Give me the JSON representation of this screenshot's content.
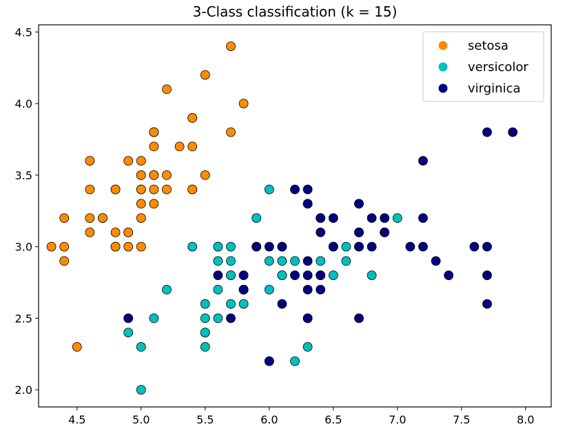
{
  "chart_data": {
    "type": "scatter",
    "title": "3-Class classification (k = 15)",
    "xlabel": "",
    "ylabel": "",
    "xlim": [
      4.2,
      8.2
    ],
    "ylim": [
      1.88,
      4.55
    ],
    "xticks": [
      4.5,
      5.0,
      5.5,
      6.0,
      6.5,
      7.0,
      7.5,
      8.0
    ],
    "xtick_labels": [
      "4.5",
      "5.0",
      "5.5",
      "6.0",
      "6.5",
      "7.0",
      "7.5",
      "8.0"
    ],
    "yticks": [
      2.0,
      2.5,
      3.0,
      3.5,
      4.0,
      4.5
    ],
    "ytick_labels": [
      "2.0",
      "2.5",
      "3.0",
      "3.5",
      "4.0",
      "4.5"
    ],
    "grid": false,
    "legend_position": "top-right",
    "series": [
      {
        "name": "setosa",
        "color": "#ff8c00",
        "points": [
          [
            5.1,
            3.5
          ],
          [
            4.9,
            3.0
          ],
          [
            4.7,
            3.2
          ],
          [
            4.6,
            3.1
          ],
          [
            5.0,
            3.6
          ],
          [
            5.4,
            3.9
          ],
          [
            4.6,
            3.4
          ],
          [
            5.0,
            3.4
          ],
          [
            4.4,
            2.9
          ],
          [
            4.9,
            3.1
          ],
          [
            5.4,
            3.7
          ],
          [
            4.8,
            3.4
          ],
          [
            4.8,
            3.0
          ],
          [
            4.3,
            3.0
          ],
          [
            5.8,
            4.0
          ],
          [
            5.7,
            4.4
          ],
          [
            5.4,
            3.9
          ],
          [
            5.1,
            3.5
          ],
          [
            5.7,
            3.8
          ],
          [
            5.1,
            3.8
          ],
          [
            5.4,
            3.4
          ],
          [
            5.1,
            3.7
          ],
          [
            4.6,
            3.6
          ],
          [
            5.1,
            3.3
          ],
          [
            4.8,
            3.4
          ],
          [
            5.0,
            3.0
          ],
          [
            5.0,
            3.4
          ],
          [
            5.2,
            3.5
          ],
          [
            5.2,
            3.4
          ],
          [
            4.7,
            3.2
          ],
          [
            4.8,
            3.1
          ],
          [
            5.4,
            3.4
          ],
          [
            5.2,
            4.1
          ],
          [
            5.5,
            4.2
          ],
          [
            4.9,
            3.1
          ],
          [
            5.0,
            3.2
          ],
          [
            5.5,
            3.5
          ],
          [
            4.9,
            3.6
          ],
          [
            4.4,
            3.0
          ],
          [
            5.1,
            3.4
          ],
          [
            5.0,
            3.5
          ],
          [
            4.5,
            2.3
          ],
          [
            4.4,
            3.2
          ],
          [
            5.0,
            3.5
          ],
          [
            5.1,
            3.8
          ],
          [
            4.8,
            3.0
          ],
          [
            5.1,
            3.8
          ],
          [
            4.6,
            3.2
          ],
          [
            5.3,
            3.7
          ],
          [
            5.0,
            3.3
          ]
        ]
      },
      {
        "name": "versicolor",
        "color": "#00bfbf",
        "points": [
          [
            7.0,
            3.2
          ],
          [
            6.4,
            3.2
          ],
          [
            6.9,
            3.1
          ],
          [
            5.5,
            2.3
          ],
          [
            6.5,
            2.8
          ],
          [
            5.7,
            2.8
          ],
          [
            6.3,
            3.3
          ],
          [
            4.9,
            2.4
          ],
          [
            6.6,
            2.9
          ],
          [
            5.2,
            2.7
          ],
          [
            5.0,
            2.0
          ],
          [
            5.9,
            3.0
          ],
          [
            6.0,
            2.2
          ],
          [
            6.1,
            2.9
          ],
          [
            5.6,
            2.9
          ],
          [
            6.7,
            3.1
          ],
          [
            5.6,
            3.0
          ],
          [
            5.8,
            2.7
          ],
          [
            6.2,
            2.2
          ],
          [
            5.6,
            2.5
          ],
          [
            5.9,
            3.2
          ],
          [
            6.1,
            2.8
          ],
          [
            6.3,
            2.5
          ],
          [
            6.1,
            2.8
          ],
          [
            6.4,
            2.9
          ],
          [
            6.6,
            3.0
          ],
          [
            6.8,
            2.8
          ],
          [
            6.7,
            3.0
          ],
          [
            6.0,
            2.9
          ],
          [
            5.7,
            2.6
          ],
          [
            5.5,
            2.4
          ],
          [
            5.5,
            2.4
          ],
          [
            5.8,
            2.7
          ],
          [
            6.0,
            2.7
          ],
          [
            5.4,
            3.0
          ],
          [
            6.0,
            3.4
          ],
          [
            6.7,
            3.1
          ],
          [
            6.3,
            2.3
          ],
          [
            5.6,
            3.0
          ],
          [
            5.5,
            2.5
          ],
          [
            5.5,
            2.6
          ],
          [
            6.1,
            3.0
          ],
          [
            5.8,
            2.6
          ],
          [
            5.0,
            2.3
          ],
          [
            5.6,
            2.7
          ],
          [
            5.7,
            3.0
          ],
          [
            5.7,
            2.9
          ],
          [
            6.2,
            2.9
          ],
          [
            5.1,
            2.5
          ],
          [
            5.7,
            2.8
          ]
        ]
      },
      {
        "name": "virginica",
        "color": "#000080",
        "points": [
          [
            6.3,
            3.3
          ],
          [
            5.8,
            2.7
          ],
          [
            7.1,
            3.0
          ],
          [
            6.3,
            2.9
          ],
          [
            6.5,
            3.0
          ],
          [
            7.6,
            3.0
          ],
          [
            4.9,
            2.5
          ],
          [
            7.3,
            2.9
          ],
          [
            6.7,
            2.5
          ],
          [
            7.2,
            3.6
          ],
          [
            6.5,
            3.2
          ],
          [
            6.4,
            2.7
          ],
          [
            6.8,
            3.0
          ],
          [
            5.7,
            2.5
          ],
          [
            5.8,
            2.8
          ],
          [
            6.4,
            3.2
          ],
          [
            6.5,
            3.0
          ],
          [
            7.7,
            3.8
          ],
          [
            7.7,
            2.6
          ],
          [
            6.0,
            2.2
          ],
          [
            6.9,
            3.2
          ],
          [
            5.6,
            2.8
          ],
          [
            7.7,
            2.8
          ],
          [
            6.3,
            2.7
          ],
          [
            6.7,
            3.3
          ],
          [
            7.2,
            3.2
          ],
          [
            6.2,
            2.8
          ],
          [
            6.1,
            3.0
          ],
          [
            6.4,
            2.8
          ],
          [
            7.2,
            3.0
          ],
          [
            7.4,
            2.8
          ],
          [
            7.9,
            3.8
          ],
          [
            6.4,
            2.8
          ],
          [
            6.3,
            2.8
          ],
          [
            6.1,
            2.6
          ],
          [
            7.7,
            3.0
          ],
          [
            6.3,
            3.4
          ],
          [
            6.4,
            3.1
          ],
          [
            6.0,
            3.0
          ],
          [
            6.9,
            3.1
          ],
          [
            6.7,
            3.1
          ],
          [
            6.9,
            3.1
          ],
          [
            5.8,
            2.7
          ],
          [
            6.8,
            3.2
          ],
          [
            6.7,
            3.3
          ],
          [
            6.7,
            3.0
          ],
          [
            6.3,
            2.5
          ],
          [
            6.5,
            3.0
          ],
          [
            6.2,
            3.4
          ],
          [
            5.9,
            3.0
          ]
        ]
      }
    ]
  }
}
